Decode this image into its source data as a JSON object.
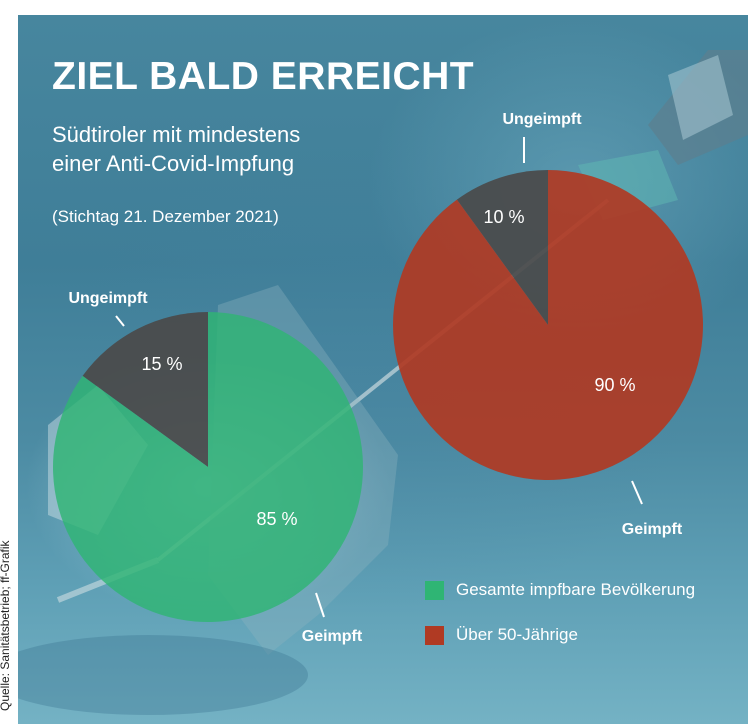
{
  "title": "ZIEL BALD ERREICHT",
  "subtitle_lines": [
    "Südtiroler mit mindestens",
    "einer Anti-Covid-Impfung"
  ],
  "date_note": "(Stichtag 21. Dezember 2021)",
  "source": "Quelle: Sanitätsbetrieb; ff-Grafik",
  "colors": {
    "vaccinated_total": "#2fb574",
    "vaccinated_over50": "#b03a23",
    "unvaccinated": "#4a4a4a"
  },
  "chart_data": [
    {
      "type": "pie",
      "series_name": "Gesamte impfbare Bevölkerung",
      "slices": [
        {
          "label": "Ungeimpft",
          "value": 15,
          "value_label": "15 %"
        },
        {
          "label": "Geimpft",
          "value": 85,
          "value_label": "85 %"
        }
      ]
    },
    {
      "type": "pie",
      "series_name": "Über 50-Jährige",
      "slices": [
        {
          "label": "Ungeimpft",
          "value": 10,
          "value_label": "10 %"
        },
        {
          "label": "Geimpft",
          "value": 90,
          "value_label": "90 %"
        }
      ]
    }
  ],
  "legend": {
    "placement": "bottom-right",
    "items": [
      "Gesamte impfbare Bevölkerung",
      "Über 50-Jährige"
    ]
  }
}
